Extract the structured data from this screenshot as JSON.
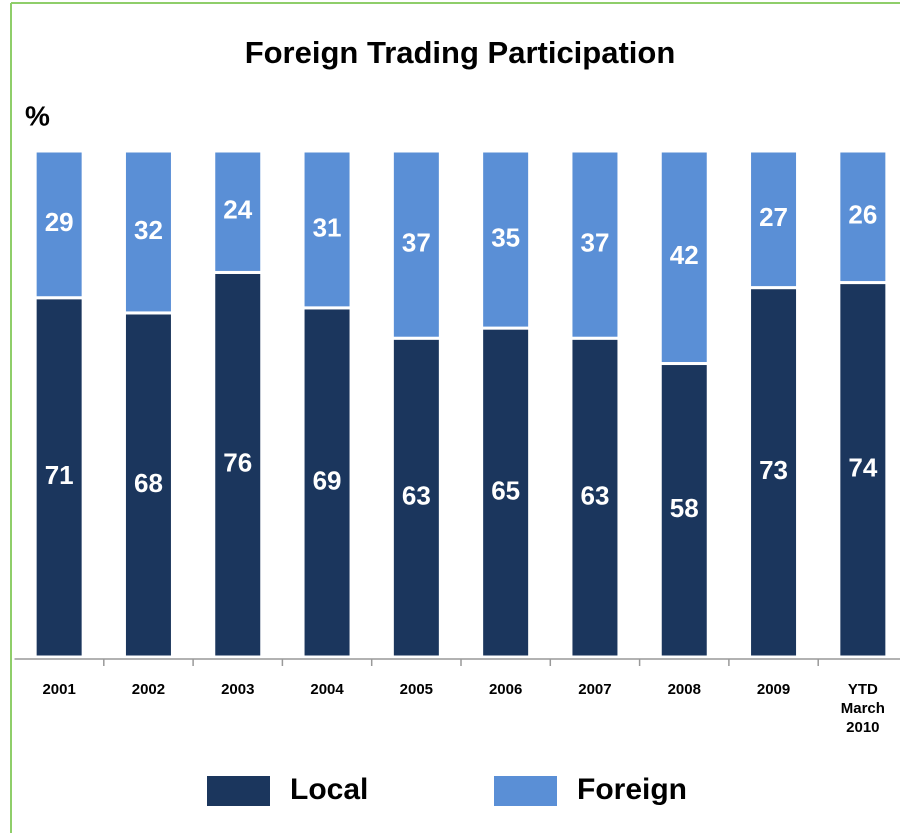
{
  "chart_data": {
    "type": "stacked_bar",
    "title": "Foreign Trading Participation",
    "y_label": "%",
    "categories": [
      "2001",
      "2002",
      "2003",
      "2004",
      "2005",
      "2006",
      "2007",
      "2008",
      "2009",
      "YTD March 2010"
    ],
    "series": [
      {
        "name": "Local",
        "color": "#1b365d",
        "values": [
          71,
          68,
          76,
          69,
          63,
          65,
          63,
          58,
          73,
          74
        ]
      },
      {
        "name": "Foreign",
        "color": "#5a8fd6",
        "values": [
          29,
          32,
          24,
          31,
          37,
          35,
          37,
          42,
          27,
          26
        ]
      }
    ],
    "ylim": [
      0,
      100
    ]
  }
}
